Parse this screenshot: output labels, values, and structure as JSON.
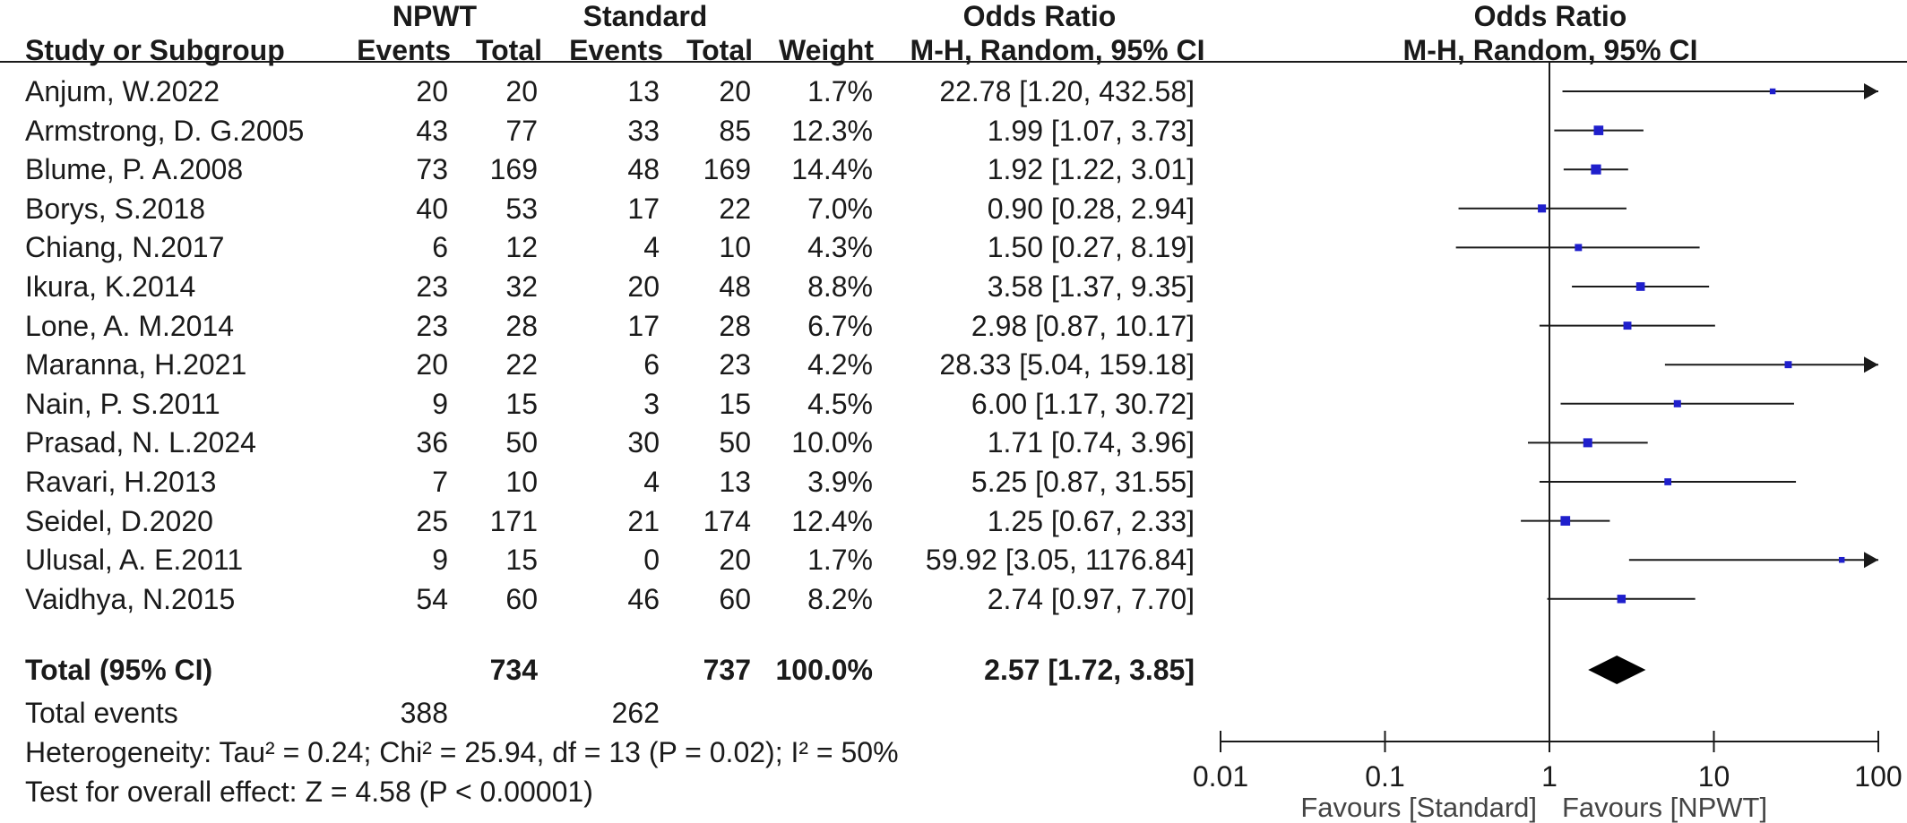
{
  "headers": {
    "group1": "NPWT",
    "group2": "Standard",
    "or_text_title": "Odds Ratio",
    "or_plot_title": "Odds Ratio",
    "study": "Study or Subgroup",
    "events1": "Events",
    "total1": "Total",
    "events2": "Events",
    "total2": "Total",
    "weight": "Weight",
    "method_text": "M-H, Random, 95% CI",
    "method_plot": "M-H, Random, 95% CI"
  },
  "studies": [
    {
      "name": "Anjum, W.2022",
      "e1": "20",
      "t1": "20",
      "e2": "13",
      "t2": "20",
      "weight": "1.7%",
      "ci_text": "22.78 [1.20, 432.58]"
    },
    {
      "name": "Armstrong, D. G.2005",
      "e1": "43",
      "t1": "77",
      "e2": "33",
      "t2": "85",
      "weight": "12.3%",
      "ci_text": "1.99 [1.07, 3.73]"
    },
    {
      "name": "Blume, P. A.2008",
      "e1": "73",
      "t1": "169",
      "e2": "48",
      "t2": "169",
      "weight": "14.4%",
      "ci_text": "1.92 [1.22, 3.01]"
    },
    {
      "name": "Borys, S.2018",
      "e1": "40",
      "t1": "53",
      "e2": "17",
      "t2": "22",
      "weight": "7.0%",
      "ci_text": "0.90 [0.28, 2.94]"
    },
    {
      "name": "Chiang, N.2017",
      "e1": "6",
      "t1": "12",
      "e2": "4",
      "t2": "10",
      "weight": "4.3%",
      "ci_text": "1.50 [0.27, 8.19]"
    },
    {
      "name": "Ikura, K.2014",
      "e1": "23",
      "t1": "32",
      "e2": "20",
      "t2": "48",
      "weight": "8.8%",
      "ci_text": "3.58 [1.37, 9.35]"
    },
    {
      "name": "Lone, A. M.2014",
      "e1": "23",
      "t1": "28",
      "e2": "17",
      "t2": "28",
      "weight": "6.7%",
      "ci_text": "2.98 [0.87, 10.17]"
    },
    {
      "name": "Maranna, H.2021",
      "e1": "20",
      "t1": "22",
      "e2": "6",
      "t2": "23",
      "weight": "4.2%",
      "ci_text": "28.33 [5.04, 159.18]"
    },
    {
      "name": "Nain, P. S.2011",
      "e1": "9",
      "t1": "15",
      "e2": "3",
      "t2": "15",
      "weight": "4.5%",
      "ci_text": "6.00 [1.17, 30.72]"
    },
    {
      "name": "Prasad, N. L.2024",
      "e1": "36",
      "t1": "50",
      "e2": "30",
      "t2": "50",
      "weight": "10.0%",
      "ci_text": "1.71 [0.74, 3.96]"
    },
    {
      "name": "Ravari, H.2013",
      "e1": "7",
      "t1": "10",
      "e2": "4",
      "t2": "13",
      "weight": "3.9%",
      "ci_text": "5.25 [0.87, 31.55]"
    },
    {
      "name": "Seidel, D.2020",
      "e1": "25",
      "t1": "171",
      "e2": "21",
      "t2": "174",
      "weight": "12.4%",
      "ci_text": "1.25 [0.67, 2.33]"
    },
    {
      "name": "Ulusal, A. E.2011",
      "e1": "9",
      "t1": "15",
      "e2": "0",
      "t2": "20",
      "weight": "1.7%",
      "ci_text": "59.92 [3.05, 1176.84]"
    },
    {
      "name": "Vaidhya, N.2015",
      "e1": "54",
      "t1": "60",
      "e2": "46",
      "t2": "60",
      "weight": "8.2%",
      "ci_text": "2.74 [0.97, 7.70]"
    }
  ],
  "total": {
    "label": "Total (95% CI)",
    "t1": "734",
    "t2": "737",
    "weight": "100.0%",
    "ci_text": "2.57 [1.72, 3.85]"
  },
  "total_events": {
    "label": "Total events",
    "e1": "388",
    "e2": "262"
  },
  "heterogeneity": "Heterogeneity: Tau² = 0.24; Chi² = 25.94, df = 13 (P = 0.02); I² = 50%",
  "overall_effect": "Test for overall effect: Z = 4.58 (P < 0.00001)",
  "colors": {
    "marker": "#1f1fcc",
    "line": "#1a1a1a",
    "diamond": "#000000"
  },
  "chart_data": {
    "type": "forest",
    "scale": "log",
    "xlim": [
      0.01,
      100
    ],
    "ticks": [
      "0.01",
      "0.1",
      "1",
      "10",
      "100"
    ],
    "favours_left": "Favours [Standard]",
    "favours_right": "Favours [NPWT]",
    "points": [
      {
        "or": 22.78,
        "lo": 1.2,
        "hi": 432.58,
        "w": 1.7
      },
      {
        "or": 1.99,
        "lo": 1.07,
        "hi": 3.73,
        "w": 12.3
      },
      {
        "or": 1.92,
        "lo": 1.22,
        "hi": 3.01,
        "w": 14.4
      },
      {
        "or": 0.9,
        "lo": 0.28,
        "hi": 2.94,
        "w": 7.0
      },
      {
        "or": 1.5,
        "lo": 0.27,
        "hi": 8.19,
        "w": 4.3
      },
      {
        "or": 3.58,
        "lo": 1.37,
        "hi": 9.35,
        "w": 8.8
      },
      {
        "or": 2.98,
        "lo": 0.87,
        "hi": 10.17,
        "w": 6.7
      },
      {
        "or": 28.33,
        "lo": 5.04,
        "hi": 159.18,
        "w": 4.2
      },
      {
        "or": 6.0,
        "lo": 1.17,
        "hi": 30.72,
        "w": 4.5
      },
      {
        "or": 1.71,
        "lo": 0.74,
        "hi": 3.96,
        "w": 10.0
      },
      {
        "or": 5.25,
        "lo": 0.87,
        "hi": 31.55,
        "w": 3.9
      },
      {
        "or": 1.25,
        "lo": 0.67,
        "hi": 2.33,
        "w": 12.4
      },
      {
        "or": 59.92,
        "lo": 3.05,
        "hi": 1176.84,
        "w": 1.7
      },
      {
        "or": 2.74,
        "lo": 0.97,
        "hi": 7.7,
        "w": 8.2
      }
    ],
    "pooled": {
      "or": 2.57,
      "lo": 1.72,
      "hi": 3.85
    }
  }
}
